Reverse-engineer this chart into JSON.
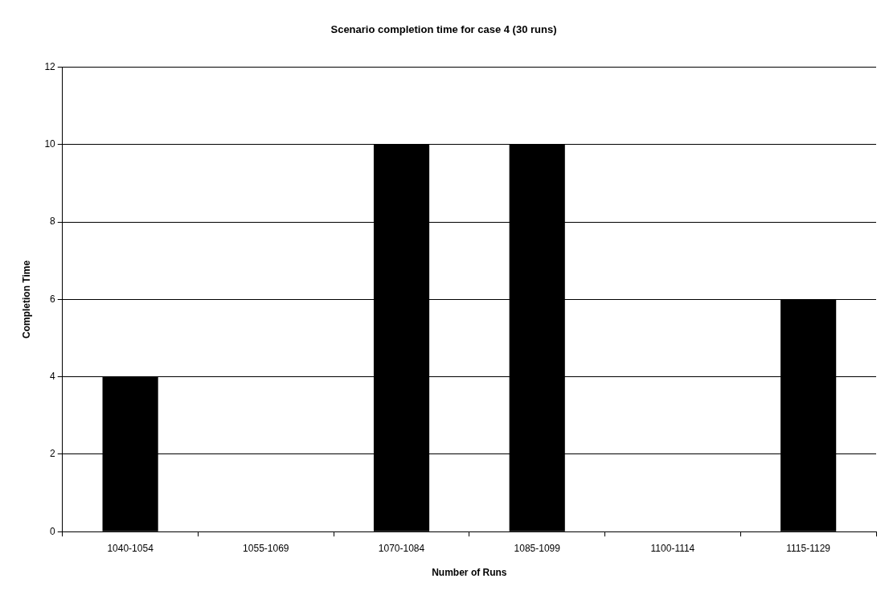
{
  "chart_data": {
    "type": "bar",
    "title": "Scenario completion time for case 4 (30 runs)",
    "xlabel": "Number of Runs",
    "ylabel": "Completion Time",
    "categories": [
      "1040-1054",
      "1055-1069",
      "1070-1084",
      "1085-1099",
      "1100-1114",
      "1115-1129"
    ],
    "values": [
      4,
      0,
      10,
      10,
      0,
      6
    ],
    "color": "#000000",
    "ylim": [
      0,
      12
    ],
    "yticks": [
      0,
      2,
      4,
      6,
      8,
      10,
      12
    ],
    "grid": "y",
    "legend": false
  }
}
